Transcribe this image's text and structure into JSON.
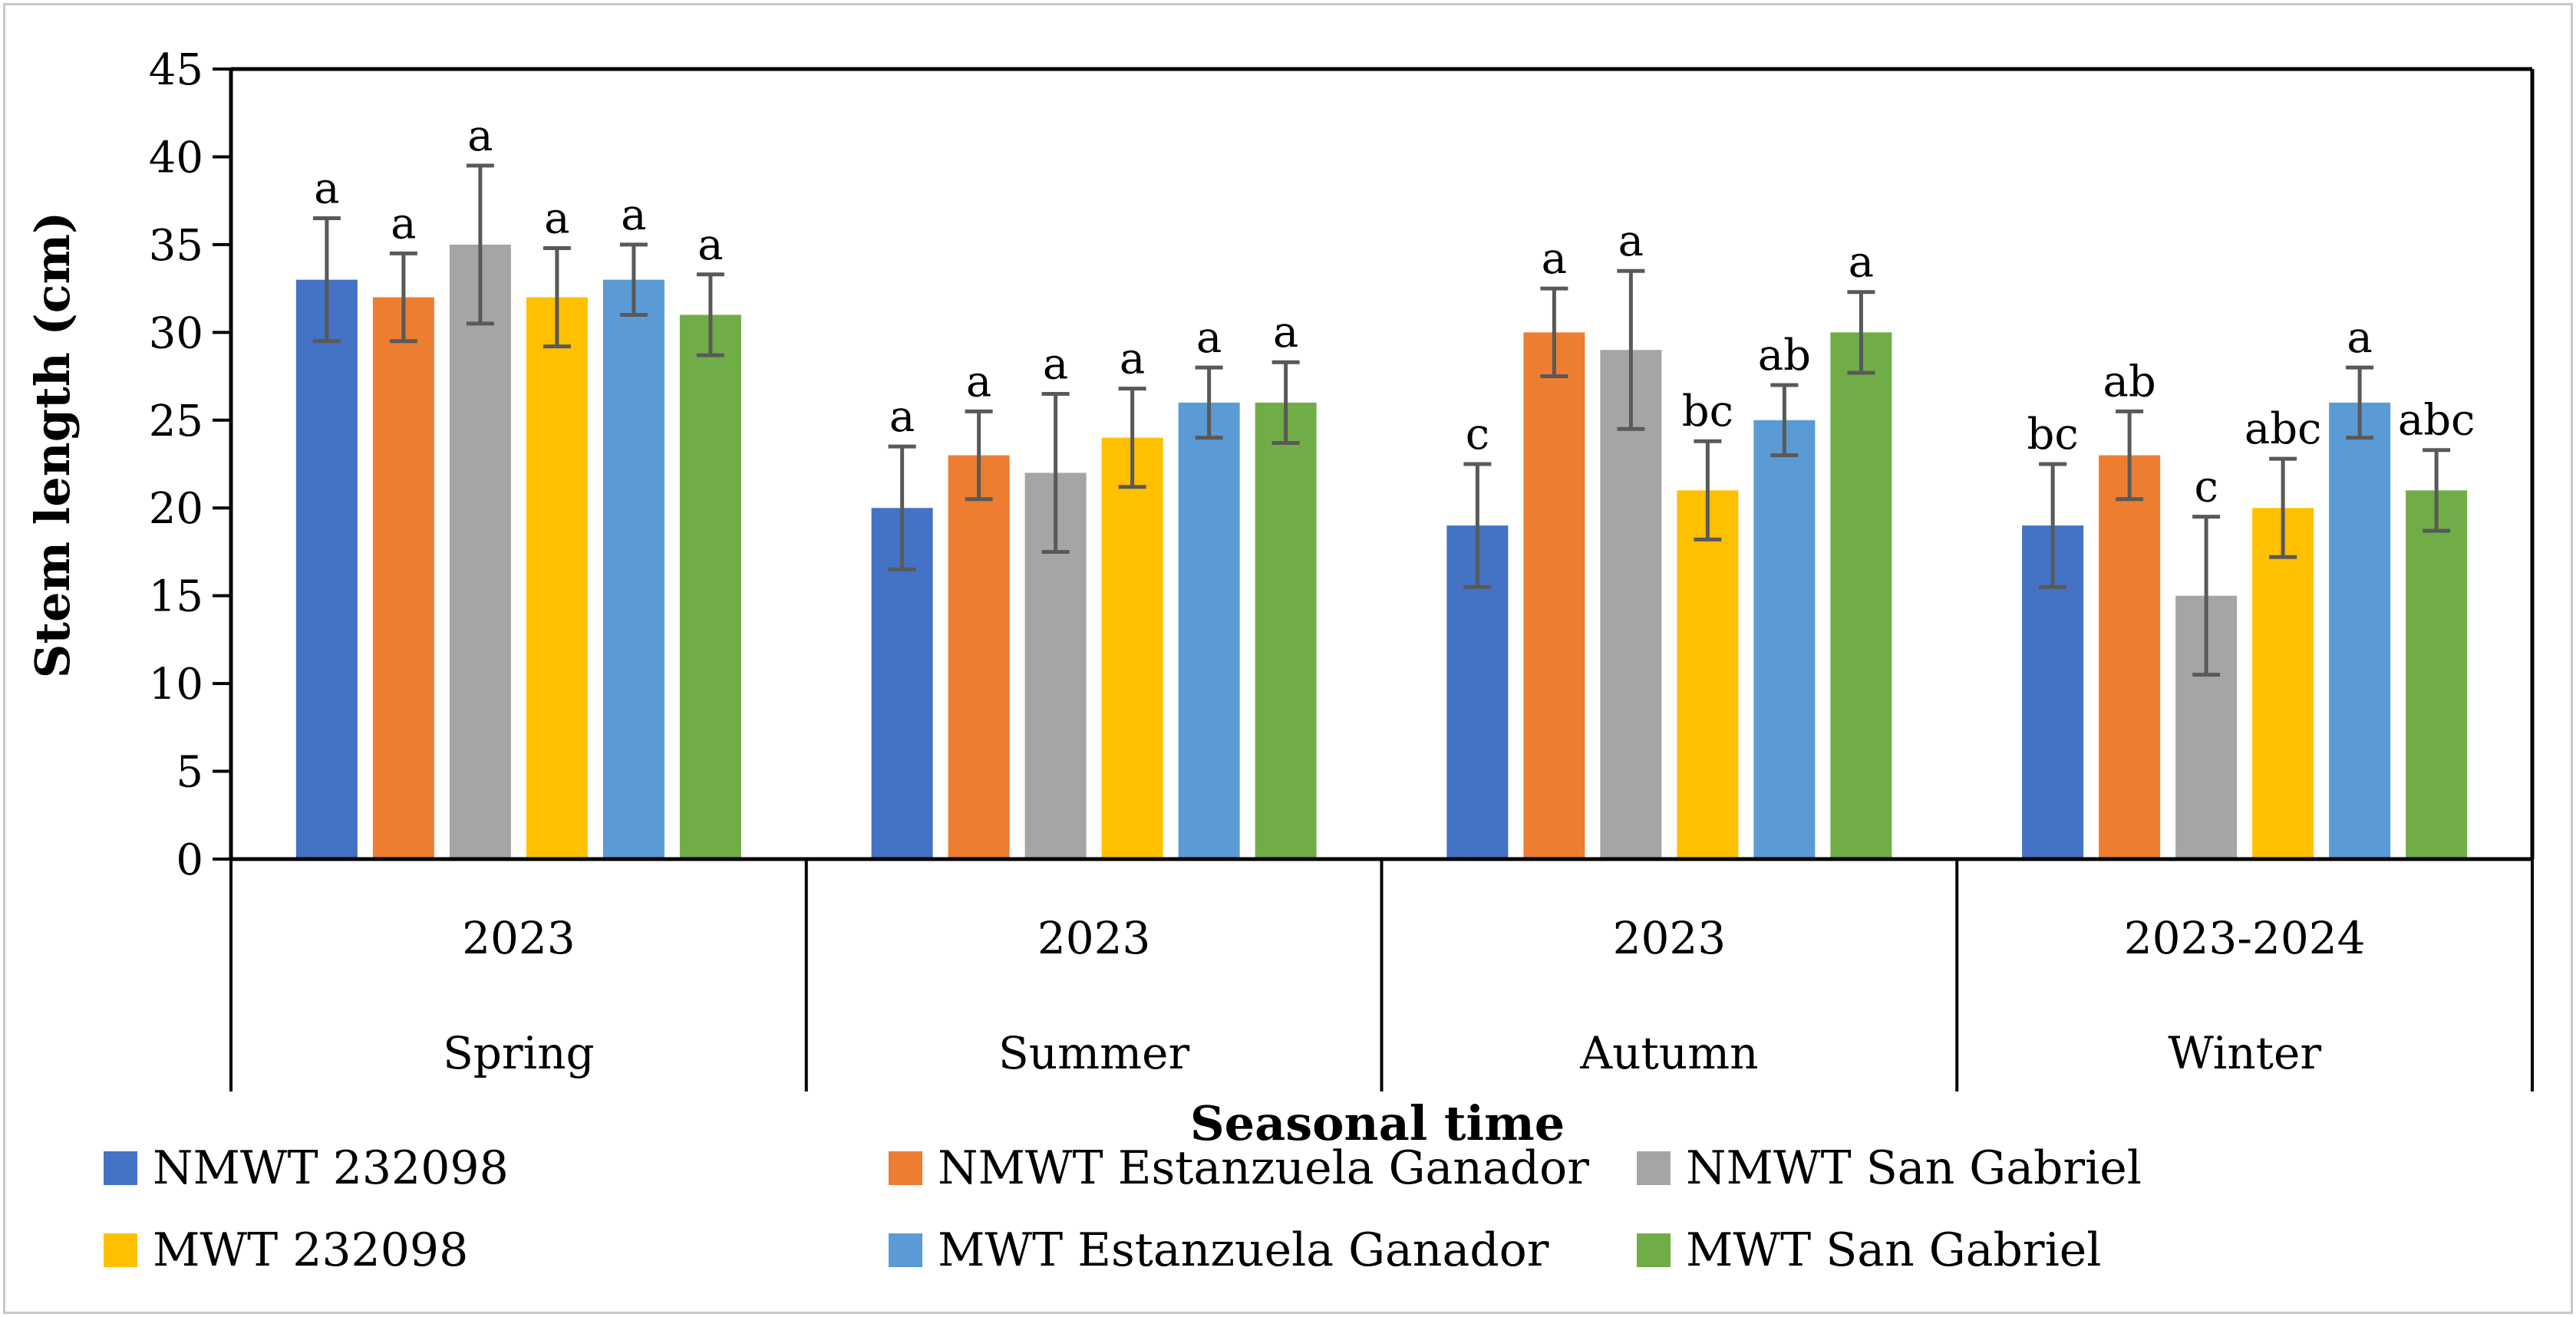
{
  "chart_data": {
    "type": "bar",
    "title": "",
    "ylabel": "Stem length (cm)",
    "xlabel": "Seasonal time",
    "ylim": [
      0,
      45
    ],
    "yticks": [
      0,
      5,
      10,
      15,
      20,
      25,
      30,
      35,
      40,
      45
    ],
    "grid": false,
    "legend_position": "bottom",
    "groups": [
      {
        "year": "2023",
        "season": "Spring"
      },
      {
        "year": "2023",
        "season": "Summer"
      },
      {
        "year": "2023",
        "season": "Autumn"
      },
      {
        "year": "2023-2024",
        "season": "Winter"
      }
    ],
    "series": [
      {
        "name": "NMWT 232098",
        "color": "#4472c4",
        "values": [
          33,
          20,
          19,
          19
        ],
        "errors": [
          3.5,
          3.5,
          3.5,
          3.5
        ],
        "letters": [
          "a",
          "a",
          "c",
          "bc"
        ]
      },
      {
        "name": "NMWT Estanzuela Ganador",
        "color": "#ed7d31",
        "values": [
          32,
          23,
          30,
          23
        ],
        "errors": [
          2.5,
          2.5,
          2.5,
          2.5
        ],
        "letters": [
          "a",
          "a",
          "a",
          "ab"
        ]
      },
      {
        "name": "NMWT San Gabriel",
        "color": "#a5a5a5",
        "values": [
          35,
          22,
          29,
          15
        ],
        "errors": [
          4.5,
          4.5,
          4.5,
          4.5
        ],
        "letters": [
          "a",
          "a",
          "a",
          "c"
        ]
      },
      {
        "name": "MWT 232098",
        "color": "#ffc000",
        "values": [
          32,
          24,
          21,
          20
        ],
        "errors": [
          2.8,
          2.8,
          2.8,
          2.8
        ],
        "letters": [
          "a",
          "a",
          "bc",
          "abc"
        ]
      },
      {
        "name": "MWT Estanzuela Ganador",
        "color": "#5b9bd5",
        "values": [
          33,
          26,
          25,
          26
        ],
        "errors": [
          2,
          2,
          2,
          2
        ],
        "letters": [
          "a",
          "a",
          "ab",
          "a"
        ]
      },
      {
        "name": "MWT San Gabriel",
        "color": "#70ad47",
        "values": [
          31,
          26,
          30,
          21
        ],
        "errors": [
          2.3,
          2.3,
          2.3,
          2.3
        ],
        "letters": [
          "a",
          "a",
          "a",
          "abc"
        ]
      }
    ]
  }
}
